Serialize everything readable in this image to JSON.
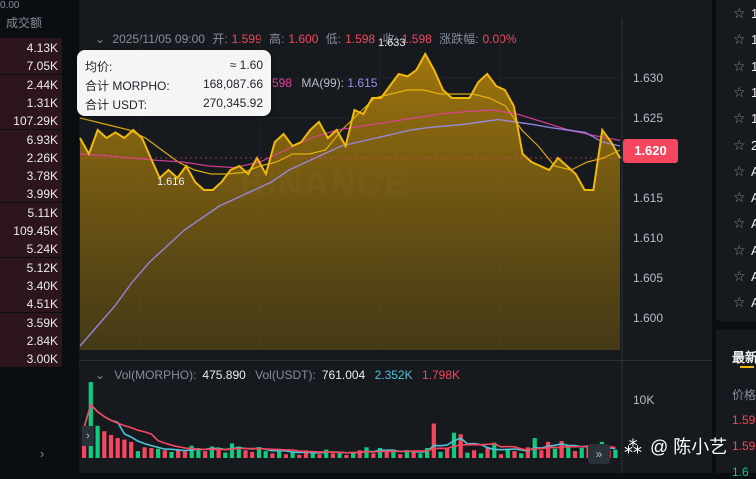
{
  "left": {
    "top_text": "0.00",
    "header": "成交额",
    "volumes": [
      "4.13K",
      "7.05K",
      "2.44K",
      "1.31K",
      "107.29K",
      "6.93K",
      "2.26K",
      "3.78K",
      "3.99K",
      "5.11K",
      "109.45K",
      "5.24K",
      "5.12K",
      "3.40K",
      "4.51K",
      "3.59K",
      "2.84K",
      "3.00K"
    ],
    "chevron": "›"
  },
  "chart": {
    "ohlc": {
      "time": "2025/11/05 09:00",
      "open_label": "开:",
      "open": "1.599",
      "high_label": "高:",
      "high": "1.600",
      "low_label": "低:",
      "low": "1.598",
      "close_label": "收:",
      "close": "1.598",
      "change_label": "涨跌幅:",
      "change": "0.00%"
    },
    "ma_row": {
      "ma7_value": "598",
      "ma99_label": "MA(99):",
      "ma99_value": "1.615"
    },
    "tooltip": {
      "avg_label": "均价:",
      "avg_value": "≈ 1.60",
      "morpho_label": "合计 MORPHO:",
      "morpho_value": "168,087.66",
      "usdt_label": "合计 USDT:",
      "usdt_value": "270,345.92"
    },
    "price_axis": [
      "1.630",
      "1.625",
      "1.615",
      "1.610",
      "1.605",
      "1.600"
    ],
    "current_price": "1.620",
    "high_marker": "1.633",
    "low_marker": "1.616",
    "watermark": "BINANCE",
    "volume_legend": {
      "vol_morpho_label": "Vol(MORPHO):",
      "vol_morpho_value": "475.890",
      "vol_usdt_label": "Vol(USDT):",
      "vol_usdt_value": "761.004",
      "ma1": "2.352K",
      "ma2": "1.798K"
    },
    "volume_axis": "10K",
    "colors": {
      "up": "#0ecb81",
      "down": "#f6465d",
      "line": "#f0b90b",
      "ma99": "#9b8cf0",
      "ma25": "#e040a0"
    }
  },
  "chart_data": {
    "type": "area",
    "title": "",
    "xlabel": "",
    "ylabel": "",
    "ylim": [
      1.596,
      1.636
    ],
    "y": [
      1.6225,
      1.6205,
      1.6235,
      1.6225,
      1.6232,
      1.6225,
      1.6235,
      1.6225,
      1.62,
      1.6175,
      1.6185,
      1.6175,
      1.619,
      1.617,
      1.616,
      1.616,
      1.617,
      1.6185,
      1.619,
      1.618,
      1.62,
      1.618,
      1.622,
      1.623,
      1.6215,
      1.622,
      1.6235,
      1.6245,
      1.6225,
      1.6235,
      1.6215,
      1.626,
      1.6255,
      1.6275,
      1.6275,
      1.629,
      1.6305,
      1.6302,
      1.631,
      1.633,
      1.631,
      1.6285,
      1.6275,
      1.6275,
      1.6275,
      1.6295,
      1.6305,
      1.629,
      1.6285,
      1.6265,
      1.6205,
      1.6195,
      1.619,
      1.6185,
      1.62,
      1.619,
      1.618,
      1.616,
      1.616,
      1.6235,
      1.622,
      1.62
    ],
    "series": [
      {
        "values": [
          1.625,
          1.6245,
          1.624,
          1.6235,
          1.6225,
          1.621,
          1.6195,
          1.6185,
          1.618,
          1.618,
          1.6182,
          1.619,
          1.6195,
          1.6205,
          1.6205,
          1.621,
          1.6235,
          1.6255,
          1.6275,
          1.628,
          1.6285,
          1.6285,
          1.628,
          1.628,
          1.628,
          1.6275,
          1.6265,
          1.6235,
          1.6215,
          1.619,
          1.6185,
          1.6195,
          1.62,
          1.621
        ]
      },
      {
        "values": [
          1.6205,
          1.6203,
          1.62,
          1.6197,
          1.6195,
          1.619,
          1.6188,
          1.6195,
          1.621,
          1.6225,
          1.6235,
          1.624,
          1.6245,
          1.625,
          1.6255,
          1.6258,
          1.626,
          1.6255,
          1.6245,
          1.6235,
          1.6228,
          1.6222
        ]
      },
      {
        "values": [
          1.5965,
          1.599,
          1.6015,
          1.6045,
          1.607,
          1.609,
          1.611,
          1.6125,
          1.614,
          1.615,
          1.616,
          1.617,
          1.6185,
          1.6195,
          1.6205,
          1.6215,
          1.622,
          1.6225,
          1.623,
          1.6235,
          1.6238,
          1.624,
          1.6242,
          1.6245,
          1.6248,
          1.6245,
          1.6242,
          1.6238,
          1.6235,
          1.6232,
          1.622,
          1.6215
        ]
      }
    ],
    "volumes": [
      {
        "v": 4.0,
        "up": false
      },
      {
        "v": 9.9,
        "up": true
      },
      {
        "v": 4.2,
        "up": true
      },
      {
        "v": 3.5,
        "up": false
      },
      {
        "v": 3.0,
        "up": false
      },
      {
        "v": 2.6,
        "up": false
      },
      {
        "v": 2.4,
        "up": false
      },
      {
        "v": 2.1,
        "up": false
      },
      {
        "v": 0.9,
        "up": true
      },
      {
        "v": 1.4,
        "up": false
      },
      {
        "v": 1.3,
        "up": false
      },
      {
        "v": 1.2,
        "up": true
      },
      {
        "v": 1.0,
        "up": false
      },
      {
        "v": 0.8,
        "up": true
      },
      {
        "v": 1.0,
        "up": false
      },
      {
        "v": 0.9,
        "up": false
      },
      {
        "v": 1.6,
        "up": true
      },
      {
        "v": 1.3,
        "up": true
      },
      {
        "v": 0.9,
        "up": false
      },
      {
        "v": 1.5,
        "up": true
      },
      {
        "v": 1.1,
        "up": false
      },
      {
        "v": 0.7,
        "up": true
      },
      {
        "v": 1.9,
        "up": true
      },
      {
        "v": 1.5,
        "up": true
      },
      {
        "v": 1.0,
        "up": false
      },
      {
        "v": 0.8,
        "up": false
      },
      {
        "v": 1.4,
        "up": true
      },
      {
        "v": 0.9,
        "up": true
      },
      {
        "v": 0.6,
        "up": false
      },
      {
        "v": 1.2,
        "up": true
      },
      {
        "v": 0.5,
        "up": false
      },
      {
        "v": 0.8,
        "up": true
      },
      {
        "v": 0.4,
        "up": false
      },
      {
        "v": 1.0,
        "up": false
      },
      {
        "v": 0.7,
        "up": true
      },
      {
        "v": 0.5,
        "up": false
      },
      {
        "v": 1.1,
        "up": true
      },
      {
        "v": 0.6,
        "up": false
      },
      {
        "v": 0.8,
        "up": true
      },
      {
        "v": 0.4,
        "up": false
      },
      {
        "v": 0.7,
        "up": true
      },
      {
        "v": 1.0,
        "up": false
      },
      {
        "v": 1.4,
        "up": true
      },
      {
        "v": 0.6,
        "up": false
      },
      {
        "v": 1.3,
        "up": true
      },
      {
        "v": 0.8,
        "up": false
      },
      {
        "v": 1.0,
        "up": true
      },
      {
        "v": 0.5,
        "up": false
      },
      {
        "v": 1.0,
        "up": true
      },
      {
        "v": 0.8,
        "up": false
      },
      {
        "v": 0.6,
        "up": true
      },
      {
        "v": 1.3,
        "up": true
      },
      {
        "v": 4.5,
        "up": false
      },
      {
        "v": 0.8,
        "up": true
      },
      {
        "v": 1.3,
        "up": false
      },
      {
        "v": 3.3,
        "up": true
      },
      {
        "v": 3.1,
        "up": false
      },
      {
        "v": 0.7,
        "up": true
      },
      {
        "v": 1.0,
        "up": false
      },
      {
        "v": 0.6,
        "up": true
      },
      {
        "v": 1.3,
        "up": false
      },
      {
        "v": 2.0,
        "up": true
      },
      {
        "v": 0.5,
        "up": false
      },
      {
        "v": 1.2,
        "up": true
      },
      {
        "v": 0.9,
        "up": false
      },
      {
        "v": 0.6,
        "up": true
      },
      {
        "v": 1.4,
        "up": false
      },
      {
        "v": 2.6,
        "up": true
      },
      {
        "v": 1.0,
        "up": false
      },
      {
        "v": 2.1,
        "up": false
      },
      {
        "v": 1.2,
        "up": true
      },
      {
        "v": 2.2,
        "up": false
      },
      {
        "v": 1.7,
        "up": true
      },
      {
        "v": 0.9,
        "up": false
      },
      {
        "v": 1.3,
        "up": true
      },
      {
        "v": 1.4,
        "up": false
      },
      {
        "v": 0.8,
        "up": true
      },
      {
        "v": 2.1,
        "up": true
      },
      {
        "v": 1.0,
        "up": false
      },
      {
        "v": 1.1,
        "up": true
      }
    ],
    "vol_ylim": [
      0,
      12
    ]
  },
  "right": {
    "stars": [
      "☆",
      "☆",
      "☆",
      "☆",
      "☆",
      "☆",
      "☆",
      "☆",
      "☆",
      "☆",
      "☆",
      "☆"
    ],
    "star_text": [
      "1",
      "1",
      "1",
      "1",
      "1",
      "2",
      "A",
      "A",
      "A",
      "A",
      "A",
      "A"
    ],
    "latest_label": "最新",
    "price_label": "价格",
    "trade_prices": [
      "1.59",
      "1.59",
      "1.6"
    ]
  },
  "attribution": {
    "icon": "⁂",
    "text": "@ 陈小艺"
  },
  "nav": {
    "next": "»",
    "prev": "›"
  }
}
